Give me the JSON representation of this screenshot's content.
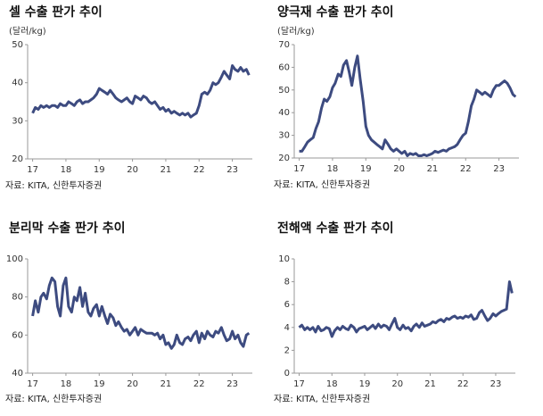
{
  "chart_data": [
    {
      "type": "line",
      "title": "셀 수출 판가 추이",
      "y_label": "(달러/kg)",
      "source": "자료: KITA, 신한투자증권",
      "color": "#3d4b80",
      "xlim": [
        16.85,
        23.6
      ],
      "xticks": [
        17,
        18,
        19,
        20,
        21,
        22,
        23
      ],
      "ylim": [
        20,
        50
      ],
      "yticks": [
        20,
        30,
        40,
        50
      ],
      "x": [
        17,
        17.08,
        17.17,
        17.25,
        17.33,
        17.42,
        17.5,
        17.58,
        17.67,
        17.75,
        17.83,
        17.92,
        18,
        18.08,
        18.17,
        18.25,
        18.33,
        18.42,
        18.5,
        18.58,
        18.67,
        18.75,
        18.83,
        18.92,
        19,
        19.08,
        19.17,
        19.25,
        19.33,
        19.42,
        19.5,
        19.58,
        19.67,
        19.75,
        19.83,
        19.92,
        20,
        20.08,
        20.17,
        20.25,
        20.33,
        20.42,
        20.5,
        20.58,
        20.67,
        20.75,
        20.83,
        20.92,
        21,
        21.08,
        21.17,
        21.25,
        21.33,
        21.42,
        21.5,
        21.58,
        21.67,
        21.75,
        21.83,
        21.92,
        22,
        22.08,
        22.17,
        22.25,
        22.33,
        22.42,
        22.5,
        22.58,
        22.67,
        22.75,
        22.83,
        22.92,
        23,
        23.08,
        23.17,
        23.25,
        23.33,
        23.42,
        23.5
      ],
      "values": [
        32,
        33.5,
        33,
        34,
        33.5,
        34,
        33.5,
        34,
        34,
        33.5,
        34.5,
        34,
        34,
        35,
        34.5,
        34,
        35,
        35.5,
        34.5,
        35,
        35,
        35.5,
        36,
        37,
        38.5,
        38,
        37.5,
        37,
        38,
        37,
        36,
        35.5,
        35,
        35.5,
        36,
        35,
        34.5,
        36.5,
        36,
        35.5,
        36.5,
        36,
        35,
        34.5,
        35,
        34,
        33,
        33.5,
        32.5,
        33,
        32,
        32.5,
        32,
        31.5,
        32,
        31.5,
        32,
        31,
        31.5,
        32,
        34,
        37,
        37.5,
        37,
        38,
        40,
        39.5,
        40,
        41.5,
        43,
        42,
        41,
        44.5,
        43.5,
        43,
        44,
        43,
        43.5,
        42
      ]
    },
    {
      "type": "line",
      "title": "양극재 수출 판가 추이",
      "y_label": "(달러/kg)",
      "source": "자료: KITA, 신한투자증권",
      "color": "#3d4b80",
      "xlim": [
        16.85,
        23.6
      ],
      "xticks": [
        17,
        18,
        19,
        20,
        21,
        22,
        23
      ],
      "ylim": [
        20,
        70
      ],
      "yticks": [
        20,
        30,
        40,
        50,
        60,
        70
      ],
      "x": [
        17,
        17.08,
        17.17,
        17.25,
        17.33,
        17.42,
        17.5,
        17.58,
        17.67,
        17.75,
        17.83,
        17.92,
        18,
        18.08,
        18.17,
        18.25,
        18.33,
        18.42,
        18.5,
        18.58,
        18.67,
        18.75,
        18.83,
        18.92,
        19,
        19.08,
        19.17,
        19.25,
        19.33,
        19.42,
        19.5,
        19.58,
        19.67,
        19.75,
        19.83,
        19.92,
        20,
        20.08,
        20.17,
        20.25,
        20.33,
        20.42,
        20.5,
        20.58,
        20.67,
        20.75,
        20.83,
        20.92,
        21,
        21.08,
        21.17,
        21.25,
        21.33,
        21.42,
        21.5,
        21.58,
        21.67,
        21.75,
        21.83,
        21.92,
        22,
        22.08,
        22.17,
        22.25,
        22.33,
        22.42,
        22.5,
        22.58,
        22.67,
        22.75,
        22.83,
        22.92,
        23,
        23.08,
        23.17,
        23.25,
        23.33,
        23.42,
        23.5
      ],
      "values": [
        23,
        23,
        25,
        27,
        28,
        29,
        33,
        36,
        42,
        46,
        45,
        47,
        51,
        53,
        57,
        56,
        61,
        63,
        58,
        52,
        60,
        65,
        55,
        45,
        34,
        30,
        28,
        27,
        26,
        25,
        24,
        28,
        26,
        24,
        23,
        24,
        23,
        22,
        23,
        21,
        22,
        21.5,
        22,
        21,
        21,
        21.5,
        21,
        21.5,
        22,
        23,
        22.5,
        23,
        23.5,
        23,
        24,
        24.5,
        25,
        26,
        28,
        30,
        31,
        36,
        43,
        46,
        50,
        49,
        48,
        49,
        48,
        47,
        50,
        52,
        52,
        53,
        54,
        53,
        51,
        48,
        47
      ]
    },
    {
      "type": "line",
      "title": "분리막 수출 판가 추이",
      "source": "자료: KITA, 신한투자증권",
      "color": "#3d4b80",
      "xlim": [
        16.85,
        23.6
      ],
      "xticks": [
        17,
        18,
        19,
        20,
        21,
        22,
        23
      ],
      "ylim": [
        40,
        100
      ],
      "yticks": [
        40,
        60,
        80,
        100
      ],
      "x": [
        17,
        17.08,
        17.17,
        17.25,
        17.33,
        17.42,
        17.5,
        17.58,
        17.67,
        17.75,
        17.83,
        17.92,
        18,
        18.08,
        18.17,
        18.25,
        18.33,
        18.42,
        18.5,
        18.58,
        18.67,
        18.75,
        18.83,
        18.92,
        19,
        19.08,
        19.17,
        19.25,
        19.33,
        19.42,
        19.5,
        19.58,
        19.67,
        19.75,
        19.83,
        19.92,
        20,
        20.08,
        20.17,
        20.25,
        20.33,
        20.42,
        20.5,
        20.58,
        20.67,
        20.75,
        20.83,
        20.92,
        21,
        21.08,
        21.17,
        21.25,
        21.33,
        21.42,
        21.5,
        21.58,
        21.67,
        21.75,
        21.83,
        21.92,
        22,
        22.08,
        22.17,
        22.25,
        22.33,
        22.42,
        22.5,
        22.58,
        22.67,
        22.75,
        22.83,
        22.92,
        23,
        23.08,
        23.17,
        23.25,
        23.33,
        23.42,
        23.5
      ],
      "values": [
        70,
        78,
        72,
        80,
        82,
        79,
        86,
        90,
        88,
        75,
        70,
        86,
        90,
        75,
        72,
        80,
        78,
        85,
        75,
        82,
        72,
        70,
        74,
        76,
        70,
        75,
        70,
        66,
        71,
        69,
        65,
        67,
        64,
        62,
        63,
        60,
        62,
        64,
        60,
        63,
        62,
        61,
        61,
        61,
        60,
        61,
        58,
        60,
        55,
        56,
        53,
        55,
        60,
        56,
        55,
        58,
        59,
        57,
        60,
        62,
        56,
        61,
        58,
        62,
        60,
        59,
        62,
        61,
        64,
        60,
        57,
        58,
        62,
        58,
        60,
        56,
        54,
        60,
        61
      ]
    },
    {
      "type": "line",
      "title": "전해액 수출 판가 추이",
      "source": "자료: KITA, 신한투자증권",
      "color": "#3d4b80",
      "xlim": [
        16.85,
        23.6
      ],
      "xticks": [
        17,
        18,
        19,
        20,
        21,
        22,
        23
      ],
      "ylim": [
        0,
        10
      ],
      "yticks": [
        0,
        2,
        4,
        6,
        8,
        10
      ],
      "x": [
        17,
        17.08,
        17.17,
        17.25,
        17.33,
        17.42,
        17.5,
        17.58,
        17.67,
        17.75,
        17.83,
        17.92,
        18,
        18.08,
        18.17,
        18.25,
        18.33,
        18.42,
        18.5,
        18.58,
        18.67,
        18.75,
        18.83,
        18.92,
        19,
        19.08,
        19.17,
        19.25,
        19.33,
        19.42,
        19.5,
        19.58,
        19.67,
        19.75,
        19.83,
        19.92,
        20,
        20.08,
        20.17,
        20.25,
        20.33,
        20.42,
        20.5,
        20.58,
        20.67,
        20.75,
        20.83,
        20.92,
        21,
        21.08,
        21.17,
        21.25,
        21.33,
        21.42,
        21.5,
        21.58,
        21.67,
        21.75,
        21.83,
        21.92,
        22,
        22.08,
        22.17,
        22.25,
        22.33,
        22.42,
        22.5,
        22.58,
        22.67,
        22.75,
        22.83,
        22.92,
        23,
        23.08,
        23.17,
        23.25,
        23.33,
        23.42,
        23.5
      ],
      "values": [
        4,
        4.2,
        3.8,
        4,
        3.8,
        4,
        3.6,
        4.1,
        3.7,
        3.8,
        4,
        3.9,
        3.2,
        3.7,
        4,
        3.8,
        4.1,
        3.9,
        3.8,
        4.2,
        4,
        3.6,
        3.9,
        4,
        4.1,
        3.8,
        4,
        4.2,
        3.9,
        4.3,
        4,
        4.2,
        4.1,
        3.8,
        4.3,
        4.8,
        4,
        3.8,
        4.2,
        3.9,
        4,
        3.7,
        4.1,
        4.3,
        4,
        4.4,
        4.1,
        4.2,
        4.3,
        4.5,
        4.4,
        4.6,
        4.7,
        4.5,
        4.8,
        4.7,
        4.9,
        5,
        4.8,
        4.9,
        4.8,
        5,
        4.9,
        5.1,
        4.7,
        4.8,
        5.3,
        5.5,
        5,
        4.6,
        4.8,
        5.2,
        5,
        5.2,
        5.4,
        5.5,
        5.6,
        8,
        7
      ]
    }
  ]
}
